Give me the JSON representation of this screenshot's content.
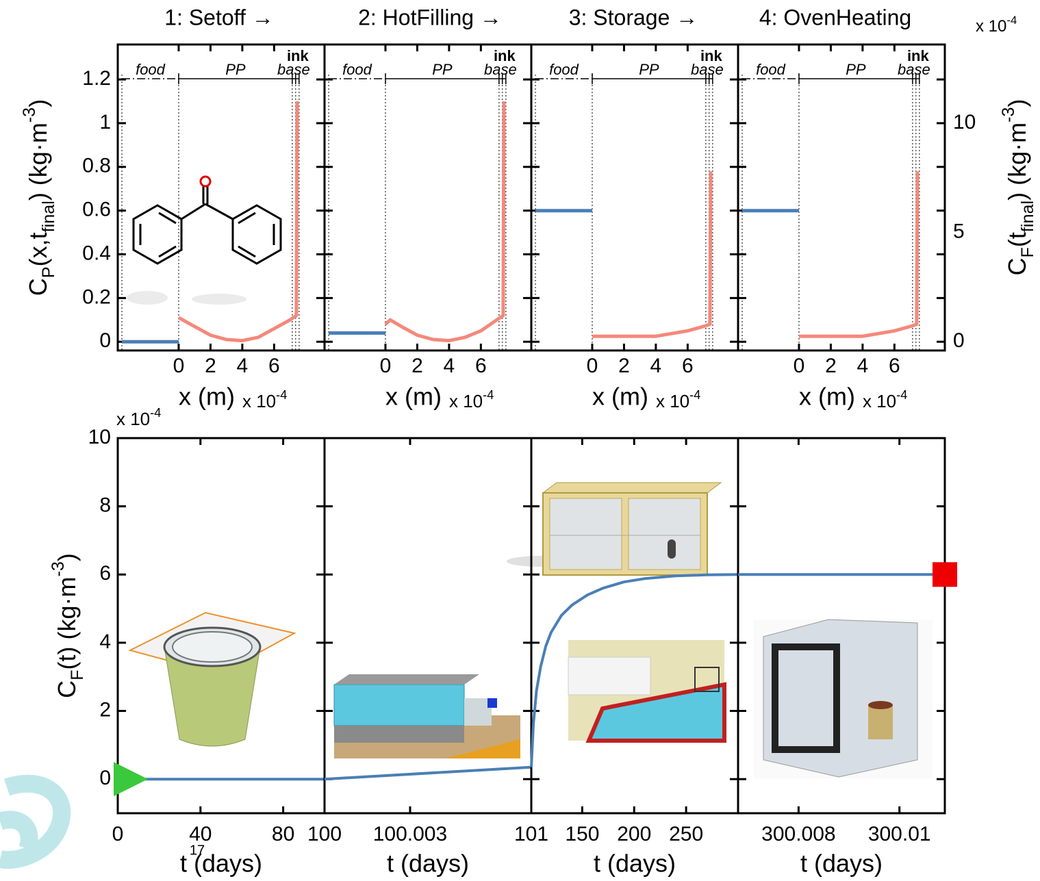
{
  "title_steps": [
    "1: Setoff →",
    "2: HotFilling →",
    "3: Storage →",
    "4: OvenHeating"
  ],
  "page_number": "17",
  "chart_data": [
    {
      "type": "line",
      "xlim": [
        -3.83,
        9.17
      ],
      "xticks": [
        0,
        2,
        4,
        6
      ],
      "xlabel": "x (m)",
      "x_multiplier": [
        {
          "text": "x 10"
        },
        {
          "text": "-4",
          "sup": true
        }
      ],
      "ylim": [
        -0.04,
        1.36
      ],
      "yticks": [
        0,
        0.2,
        0.4,
        0.6,
        0.8,
        1,
        1.2
      ],
      "ylabel": [
        {
          "text": "C"
        },
        {
          "text": "P",
          "sub": true
        },
        {
          "text": "(x,t"
        },
        {
          "text": "final",
          "sub": true
        },
        {
          "text": ") (kg·m"
        },
        {
          "text": "-3",
          "sup": true
        },
        {
          "text": ")"
        }
      ],
      "layer_labels": [
        "food",
        "PP",
        "ink",
        "base"
      ],
      "boundaries": [
        -3.57,
        0,
        7.14,
        7.35,
        7.57
      ],
      "series": [
        {
          "color": "#4a7fb5",
          "axis": "y2",
          "x": [
            -3.57,
            0
          ],
          "values": [
            0,
            0
          ]
        },
        {
          "color": "#f4897b",
          "x": [
            0,
            1,
            2,
            3,
            4,
            5,
            6,
            7,
            7.4,
            7.45
          ],
          "values": [
            0.11,
            0.07,
            0.03,
            0.01,
            0.005,
            0.02,
            0.06,
            0.1,
            0.12,
            1.1
          ]
        }
      ]
    },
    {
      "type": "line",
      "xlim": [
        -3.83,
        9.17
      ],
      "xticks": [
        0,
        2,
        4,
        6
      ],
      "xlabel": "x (m)",
      "x_multiplier": [
        {
          "text": "x 10"
        },
        {
          "text": "-4",
          "sup": true
        }
      ],
      "layer_labels": [
        "food",
        "PP",
        "ink",
        "base"
      ],
      "boundaries": [
        -3.57,
        0,
        7.14,
        7.35,
        7.57
      ],
      "series": [
        {
          "color": "#4a7fb5",
          "axis": "y2",
          "x": [
            -3.57,
            0
          ],
          "values": [
            0.4,
            0.4
          ]
        },
        {
          "color": "#f4897b",
          "x": [
            0,
            0.3,
            1,
            2,
            3,
            4,
            5,
            6,
            7,
            7.4,
            7.45
          ],
          "values": [
            0.08,
            0.1,
            0.07,
            0.03,
            0.01,
            0.005,
            0.02,
            0.05,
            0.1,
            0.12,
            1.1
          ]
        }
      ]
    },
    {
      "type": "line",
      "xlim": [
        -3.83,
        9.17
      ],
      "xticks": [
        0,
        2,
        4,
        6
      ],
      "xlabel": "x (m)",
      "x_multiplier": [
        {
          "text": "x 10"
        },
        {
          "text": "-4",
          "sup": true
        }
      ],
      "layer_labels": [
        "food",
        "PP",
        "ink",
        "base"
      ],
      "boundaries": [
        -3.57,
        0,
        7.14,
        7.35,
        7.57
      ],
      "series": [
        {
          "color": "#4a7fb5",
          "axis": "y2",
          "x": [
            -3.57,
            0
          ],
          "values": [
            6,
            6
          ]
        },
        {
          "color": "#f4897b",
          "x": [
            0,
            2,
            4,
            6,
            7,
            7.4,
            7.45
          ],
          "values": [
            0.025,
            0.025,
            0.025,
            0.05,
            0.07,
            0.08,
            0.78
          ]
        }
      ]
    },
    {
      "type": "line",
      "xlim": [
        -3.83,
        9.17
      ],
      "xticks": [
        0,
        2,
        4,
        6
      ],
      "xlabel": "x (m)",
      "x_multiplier": [
        {
          "text": "x 10"
        },
        {
          "text": "-4",
          "sup": true
        }
      ],
      "y2lim": [
        -0.4,
        13.6
      ],
      "y2ticks": [
        0,
        5,
        10
      ],
      "y2label": [
        {
          "text": "C"
        },
        {
          "text": "F",
          "sub": true
        },
        {
          "text": "(t"
        },
        {
          "text": "final",
          "sub": true
        },
        {
          "text": ") (kg·m"
        },
        {
          "text": "-3",
          "sup": true
        },
        {
          "text": ")"
        }
      ],
      "y2_multiplier": [
        {
          "text": "x 10"
        },
        {
          "text": "-4",
          "sup": true
        }
      ],
      "layer_labels": [
        "food",
        "PP",
        "ink",
        "base"
      ],
      "boundaries": [
        -3.57,
        0,
        7.14,
        7.35,
        7.57
      ],
      "series": [
        {
          "color": "#4a7fb5",
          "axis": "y2",
          "x": [
            -3.57,
            0
          ],
          "values": [
            6,
            6
          ]
        },
        {
          "color": "#f4897b",
          "x": [
            0,
            2,
            4,
            6,
            7,
            7.4,
            7.45
          ],
          "values": [
            0.025,
            0.025,
            0.025,
            0.05,
            0.07,
            0.08,
            0.78
          ]
        }
      ]
    },
    {
      "type": "line",
      "xlim": [
        0,
        100
      ],
      "xticks": [
        0,
        40,
        80
      ],
      "xlabel": "t (days)",
      "ylim": [
        -1,
        10
      ],
      "yticks": [
        0,
        2,
        4,
        6,
        8,
        10
      ],
      "y_multiplier": [
        {
          "text": "x 10"
        },
        {
          "text": "-4",
          "sup": true
        }
      ],
      "ylabel": [
        {
          "text": "C"
        },
        {
          "text": "F",
          "sub": true
        },
        {
          "text": "(t) (kg·m"
        },
        {
          "text": "-3",
          "sup": true
        },
        {
          "text": ")"
        }
      ],
      "series": [
        {
          "color": "#4a7fb5",
          "x": [
            0,
            100
          ],
          "values": [
            0,
            0
          ],
          "start_marker": {
            "shape": "triangle",
            "color": "#3cc83c"
          }
        }
      ]
    },
    {
      "type": "line",
      "xlim": [
        100,
        100.00725
      ],
      "xticks": [
        100,
        100.003
      ],
      "xlabel": "t (days)",
      "series": [
        {
          "color": "#4a7fb5",
          "x": [
            100,
            100.00725
          ],
          "values": [
            0,
            0.35
          ]
        }
      ]
    },
    {
      "type": "line",
      "xlim": [
        101,
        300
      ],
      "xticks": [
        101,
        150,
        200,
        250
      ],
      "xlabel": "t (days)",
      "series": [
        {
          "color": "#4a7fb5",
          "x": [
            101,
            103,
            106,
            110,
            115,
            120,
            130,
            140,
            155,
            170,
            190,
            210,
            240,
            270,
            300
          ],
          "values": [
            0.35,
            1.6,
            2.6,
            3.3,
            3.9,
            4.3,
            4.8,
            5.1,
            5.4,
            5.6,
            5.78,
            5.88,
            5.96,
            5.99,
            6
          ]
        }
      ]
    },
    {
      "type": "line",
      "xlim": [
        300.0068,
        300.0109
      ],
      "xticks": [
        300.008,
        300.01
      ],
      "xlabel": "t (days)",
      "series": [
        {
          "color": "#4a7fb5",
          "x": [
            300.0068,
            300.0109
          ],
          "values": [
            6,
            6
          ],
          "end_marker": {
            "shape": "square",
            "color": "#ee0000"
          }
        }
      ]
    }
  ]
}
